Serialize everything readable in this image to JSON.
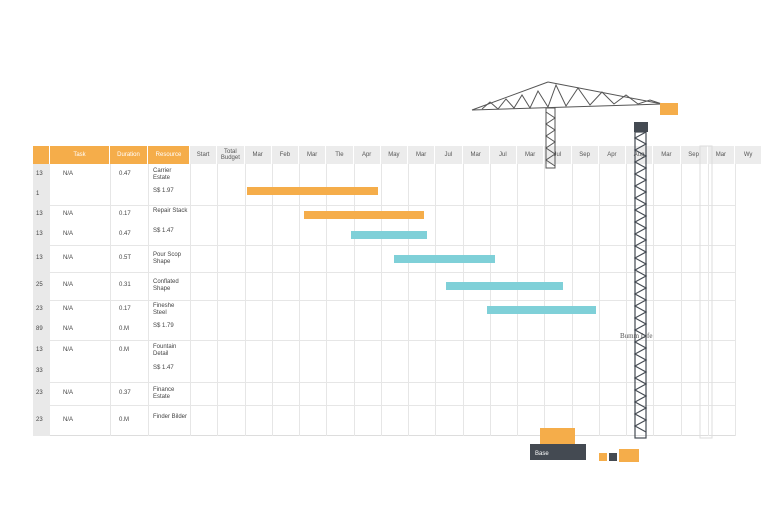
{
  "header": {
    "left": [
      "",
      "Task",
      "Duration",
      "Resource"
    ],
    "timeline": [
      "Start",
      "Total Budget",
      "Mar",
      "Feb",
      "Mar",
      "Tle",
      "Apr",
      "May",
      "Mar",
      "Jul",
      "Mar",
      "Jul",
      "Mar",
      "Jul",
      "Sep",
      "Apr",
      "Aug",
      "Mar",
      "Sep",
      "Mar",
      "Wy"
    ]
  },
  "rows": [
    {
      "num": "13",
      "task": "N/A",
      "dur": "0.47",
      "res": "Carrier Estate"
    },
    {
      "num": "1",
      "task": "",
      "dur": "",
      "res": "S$ 1.97"
    },
    {
      "num": "13",
      "task": "N/A",
      "dur": "0.17",
      "res": "Repair Stack"
    },
    {
      "num": "13",
      "task": "N/A",
      "dur": "0.47",
      "res": "S$ 1.47"
    },
    {
      "num": "13",
      "task": "N/A",
      "dur": "0.5T",
      "res": "Pour Scop Shape"
    },
    {
      "num": "25",
      "task": "N/A",
      "dur": "0.31",
      "res": "Conflated Shape"
    },
    {
      "num": "23",
      "task": "N/A",
      "dur": "0.17",
      "res": "Fineshe Steel"
    },
    {
      "num": "89",
      "task": "N/A",
      "dur": "0.M",
      "res": "S$ 1.79"
    },
    {
      "num": "13",
      "task": "N/A",
      "dur": "0.M",
      "res": "Fountain Detail"
    },
    {
      "num": "33",
      "task": "",
      "dur": "",
      "res": "S$ 1.47"
    },
    {
      "num": "23",
      "task": "N/A",
      "dur": "0.37",
      "res": "Finance Estate"
    },
    {
      "num": "23",
      "task": "N/A",
      "dur": "0.M",
      "res": "Finder Bilder"
    }
  ],
  "bars": [
    {
      "row": 0,
      "start": 2.1,
      "end": 6.9,
      "color": "#f5ad4a"
    },
    {
      "row": 2,
      "start": 4.2,
      "end": 8.6,
      "color": "#f5ad4a"
    },
    {
      "row": 3,
      "start": 5.9,
      "end": 8.7,
      "color": "#7fd0d8"
    },
    {
      "row": 4,
      "start": 7.5,
      "end": 11.2,
      "color": "#7fd0d8"
    },
    {
      "row": 5,
      "start": 9.4,
      "end": 13.7,
      "color": "#7fd0d8"
    },
    {
      "row": 6,
      "start": 10.9,
      "end": 14.9,
      "color": "#7fd0d8"
    }
  ],
  "crane": {
    "label": "Bumm Life",
    "base_label": "Base",
    "accent": "#f5ad4a",
    "steel": "#444a52"
  }
}
